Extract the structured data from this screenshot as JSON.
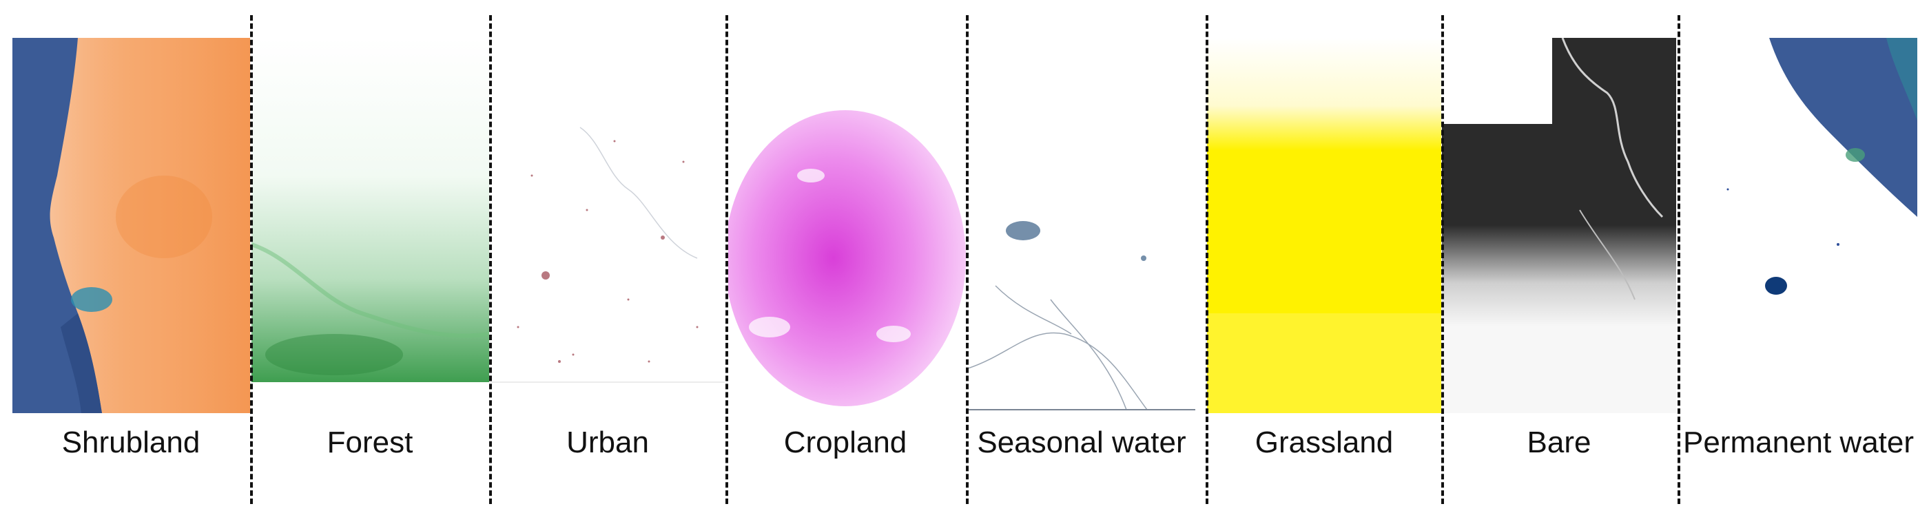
{
  "figure": {
    "panels": [
      {
        "id": "shrubland",
        "label": "Shrubland",
        "color": "#f28b3c",
        "style": "ocean-map"
      },
      {
        "id": "forest",
        "label": "Forest",
        "color": "#2e9a3f",
        "style": "fade-bottom"
      },
      {
        "id": "urban",
        "label": "Urban",
        "color": "#8a1f2d",
        "style": "sparse-dots"
      },
      {
        "id": "cropland",
        "label": "Cropland",
        "color": "#e05ae0",
        "style": "blob"
      },
      {
        "id": "seasonal_water",
        "label": "Seasonal water",
        "color": "#3b5f86",
        "style": "rivers"
      },
      {
        "id": "grassland",
        "label": "Grassland",
        "color": "#fff200",
        "style": "fill-band"
      },
      {
        "id": "bare",
        "label": "Bare",
        "color": "#2b2b2b",
        "style": "fade-top"
      },
      {
        "id": "permanent_water",
        "label": "Permanent water",
        "color": "#2f4f9a",
        "style": "ocean-edge"
      }
    ]
  }
}
